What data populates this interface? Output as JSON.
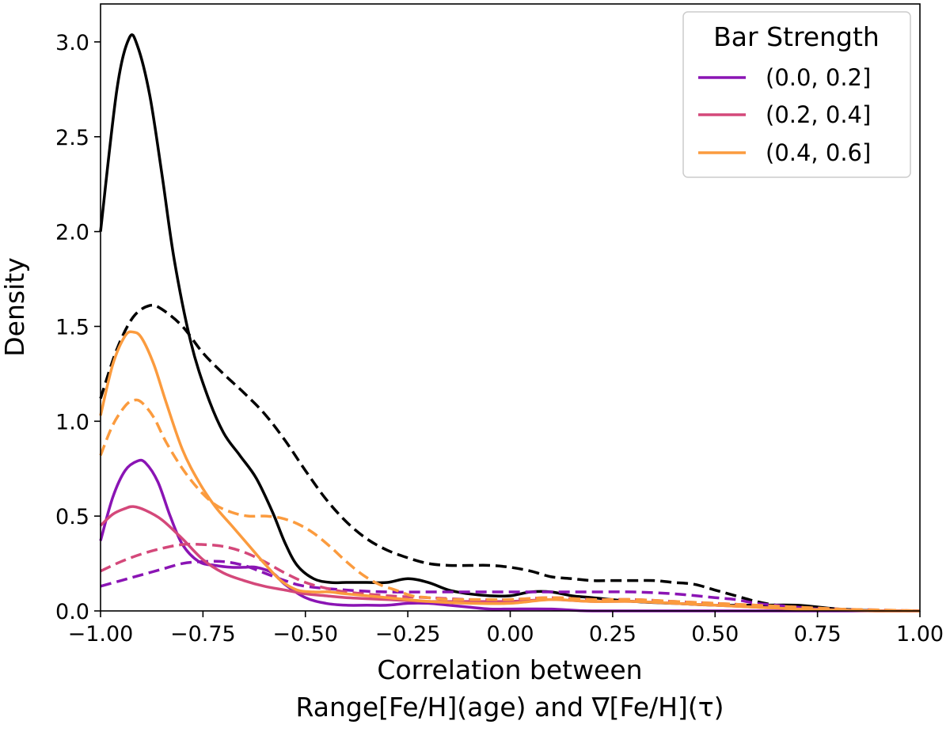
{
  "chart_data": {
    "type": "line",
    "title": "",
    "xlabel_line1": "Correlation between",
    "xlabel_line2": "Range[Fe/H](age) and ∇[Fe/H](τ)",
    "ylabel": "Density",
    "xlim": [
      -1.0,
      1.0
    ],
    "ylim": [
      0.0,
      3.2
    ],
    "xticks": [
      -1.0,
      -0.75,
      -0.5,
      -0.25,
      0.0,
      0.25,
      0.5,
      0.75,
      1.0
    ],
    "xtick_labels": [
      "−1.00",
      "−0.75",
      "−0.50",
      "−0.25",
      "0.00",
      "0.25",
      "0.50",
      "0.75",
      "1.00"
    ],
    "yticks": [
      0.0,
      0.5,
      1.0,
      1.5,
      2.0,
      2.5,
      3.0
    ],
    "ytick_labels": [
      "0.0",
      "0.5",
      "1.0",
      "1.5",
      "2.0",
      "2.5",
      "3.0"
    ],
    "legend": {
      "title": "Bar Strength",
      "location": "upper right",
      "entries": [
        {
          "label": "(0.0, 0.2]",
          "color": "#8a14b4"
        },
        {
          "label": "(0.2, 0.4]",
          "color": "#d4487a"
        },
        {
          "label": "(0.4, 0.6]",
          "color": "#fb9b3e"
        }
      ]
    },
    "series": [
      {
        "name": "overall-solid",
        "color": "#000000",
        "style": "solid",
        "x": [
          -1.0,
          -0.96,
          -0.93,
          -0.91,
          -0.88,
          -0.85,
          -0.82,
          -0.78,
          -0.74,
          -0.7,
          -0.66,
          -0.62,
          -0.58,
          -0.55,
          -0.52,
          -0.48,
          -0.44,
          -0.4,
          -0.35,
          -0.3,
          -0.25,
          -0.2,
          -0.15,
          -0.1,
          -0.05,
          0.0,
          0.05,
          0.1,
          0.15,
          0.2,
          0.3,
          0.4,
          0.5,
          0.6,
          0.7,
          0.8,
          0.9,
          1.0
        ],
        "y": [
          2.0,
          2.75,
          3.02,
          2.98,
          2.72,
          2.3,
          1.85,
          1.42,
          1.14,
          0.94,
          0.82,
          0.7,
          0.52,
          0.36,
          0.24,
          0.17,
          0.15,
          0.15,
          0.15,
          0.15,
          0.17,
          0.15,
          0.11,
          0.09,
          0.08,
          0.08,
          0.1,
          0.1,
          0.08,
          0.07,
          0.05,
          0.04,
          0.03,
          0.03,
          0.03,
          0.01,
          0.0,
          0.0
        ]
      },
      {
        "name": "overall-dashed",
        "color": "#000000",
        "style": "dashed",
        "x": [
          -1.0,
          -0.96,
          -0.92,
          -0.88,
          -0.85,
          -0.8,
          -0.75,
          -0.7,
          -0.65,
          -0.6,
          -0.55,
          -0.5,
          -0.45,
          -0.4,
          -0.35,
          -0.3,
          -0.25,
          -0.2,
          -0.15,
          -0.1,
          -0.05,
          0.0,
          0.05,
          0.1,
          0.15,
          0.2,
          0.25,
          0.3,
          0.35,
          0.4,
          0.45,
          0.5,
          0.55,
          0.6,
          0.65,
          0.7,
          0.75,
          0.8,
          0.9,
          1.0
        ],
        "y": [
          1.12,
          1.38,
          1.55,
          1.61,
          1.59,
          1.5,
          1.36,
          1.25,
          1.15,
          1.04,
          0.9,
          0.74,
          0.59,
          0.47,
          0.38,
          0.32,
          0.28,
          0.25,
          0.24,
          0.24,
          0.24,
          0.23,
          0.21,
          0.18,
          0.17,
          0.16,
          0.16,
          0.16,
          0.16,
          0.15,
          0.14,
          0.11,
          0.08,
          0.05,
          0.03,
          0.02,
          0.01,
          0.01,
          0.0,
          0.0
        ]
      },
      {
        "name": "(0.0, 0.2] solid",
        "color": "#8a14b4",
        "style": "solid",
        "x": [
          -1.0,
          -0.97,
          -0.94,
          -0.91,
          -0.89,
          -0.86,
          -0.83,
          -0.8,
          -0.76,
          -0.72,
          -0.68,
          -0.65,
          -0.62,
          -0.58,
          -0.55,
          -0.5,
          -0.45,
          -0.4,
          -0.35,
          -0.3,
          -0.25,
          -0.2,
          -0.15,
          -0.1,
          -0.05,
          0.0,
          0.1,
          0.2,
          0.4,
          0.6,
          0.8,
          1.0
        ],
        "y": [
          0.37,
          0.6,
          0.74,
          0.79,
          0.78,
          0.68,
          0.5,
          0.35,
          0.26,
          0.24,
          0.23,
          0.23,
          0.23,
          0.2,
          0.14,
          0.07,
          0.04,
          0.03,
          0.03,
          0.03,
          0.04,
          0.04,
          0.03,
          0.02,
          0.01,
          0.01,
          0.01,
          0.0,
          0.0,
          0.0,
          0.0,
          0.0
        ]
      },
      {
        "name": "(0.0, 0.2] dashed",
        "color": "#8a14b4",
        "style": "dashed",
        "x": [
          -1.0,
          -0.95,
          -0.9,
          -0.85,
          -0.8,
          -0.75,
          -0.7,
          -0.65,
          -0.6,
          -0.55,
          -0.5,
          -0.4,
          -0.3,
          -0.2,
          -0.1,
          0.0,
          0.1,
          0.2,
          0.3,
          0.4,
          0.5,
          0.55,
          0.6,
          0.65,
          0.7,
          0.75,
          0.8,
          0.9,
          1.0
        ],
        "y": [
          0.13,
          0.16,
          0.19,
          0.22,
          0.25,
          0.26,
          0.26,
          0.24,
          0.2,
          0.16,
          0.13,
          0.11,
          0.1,
          0.1,
          0.1,
          0.1,
          0.1,
          0.1,
          0.1,
          0.09,
          0.07,
          0.06,
          0.04,
          0.03,
          0.02,
          0.01,
          0.005,
          0.0,
          0.0
        ]
      },
      {
        "name": "(0.2, 0.4] solid",
        "color": "#d4487a",
        "style": "solid",
        "x": [
          -1.0,
          -0.97,
          -0.94,
          -0.92,
          -0.89,
          -0.85,
          -0.8,
          -0.75,
          -0.7,
          -0.65,
          -0.6,
          -0.55,
          -0.5,
          -0.45,
          -0.4,
          -0.3,
          -0.2,
          -0.1,
          0.0,
          0.1,
          0.2,
          0.3,
          0.4,
          0.5,
          0.6,
          0.7,
          0.8,
          0.9,
          1.0
        ],
        "y": [
          0.45,
          0.51,
          0.54,
          0.55,
          0.53,
          0.48,
          0.38,
          0.27,
          0.2,
          0.16,
          0.13,
          0.11,
          0.09,
          0.08,
          0.07,
          0.06,
          0.05,
          0.05,
          0.05,
          0.06,
          0.05,
          0.05,
          0.04,
          0.03,
          0.02,
          0.01,
          0.005,
          0.0,
          0.0
        ]
      },
      {
        "name": "(0.2, 0.4] dashed",
        "color": "#d4487a",
        "style": "dashed",
        "x": [
          -1.0,
          -0.95,
          -0.9,
          -0.85,
          -0.8,
          -0.75,
          -0.7,
          -0.65,
          -0.6,
          -0.55,
          -0.5,
          -0.45,
          -0.4,
          -0.3,
          -0.2,
          -0.1,
          0.0,
          0.1,
          0.2,
          0.3,
          0.4,
          0.5,
          0.6,
          0.7,
          0.8,
          0.9,
          1.0
        ],
        "y": [
          0.21,
          0.26,
          0.3,
          0.33,
          0.35,
          0.35,
          0.34,
          0.31,
          0.26,
          0.2,
          0.15,
          0.12,
          0.1,
          0.08,
          0.07,
          0.06,
          0.06,
          0.07,
          0.06,
          0.06,
          0.05,
          0.04,
          0.03,
          0.02,
          0.01,
          0.005,
          0.0
        ]
      },
      {
        "name": "(0.4, 0.6] solid",
        "color": "#fb9b3e",
        "style": "solid",
        "x": [
          -1.0,
          -0.97,
          -0.94,
          -0.92,
          -0.9,
          -0.87,
          -0.84,
          -0.8,
          -0.76,
          -0.72,
          -0.68,
          -0.64,
          -0.6,
          -0.56,
          -0.52,
          -0.48,
          -0.44,
          -0.4,
          -0.3,
          -0.2,
          -0.1,
          0.0,
          0.1,
          0.2,
          0.3,
          0.4,
          0.5,
          0.6,
          0.7,
          0.8,
          0.9,
          1.0
        ],
        "y": [
          1.03,
          1.3,
          1.45,
          1.47,
          1.44,
          1.3,
          1.1,
          0.85,
          0.68,
          0.55,
          0.45,
          0.35,
          0.25,
          0.16,
          0.11,
          0.1,
          0.1,
          0.09,
          0.07,
          0.05,
          0.04,
          0.04,
          0.06,
          0.05,
          0.05,
          0.04,
          0.03,
          0.02,
          0.01,
          0.005,
          0.0,
          0.0
        ]
      },
      {
        "name": "(0.4, 0.6] dashed",
        "color": "#fb9b3e",
        "style": "dashed",
        "x": [
          -1.0,
          -0.97,
          -0.94,
          -0.92,
          -0.9,
          -0.87,
          -0.84,
          -0.8,
          -0.76,
          -0.72,
          -0.68,
          -0.64,
          -0.6,
          -0.56,
          -0.52,
          -0.48,
          -0.44,
          -0.4,
          -0.36,
          -0.32,
          -0.28,
          -0.24,
          -0.2,
          -0.15,
          -0.1,
          -0.05,
          0.0,
          0.1,
          0.2,
          0.3,
          0.4,
          0.5,
          0.6,
          0.7,
          0.8,
          0.9,
          1.0
        ],
        "y": [
          0.82,
          0.98,
          1.08,
          1.11,
          1.1,
          1.02,
          0.89,
          0.75,
          0.64,
          0.56,
          0.52,
          0.5,
          0.5,
          0.49,
          0.46,
          0.41,
          0.34,
          0.26,
          0.19,
          0.14,
          0.11,
          0.08,
          0.07,
          0.06,
          0.06,
          0.06,
          0.06,
          0.07,
          0.06,
          0.06,
          0.05,
          0.04,
          0.03,
          0.02,
          0.01,
          0.005,
          0.0
        ]
      }
    ]
  }
}
